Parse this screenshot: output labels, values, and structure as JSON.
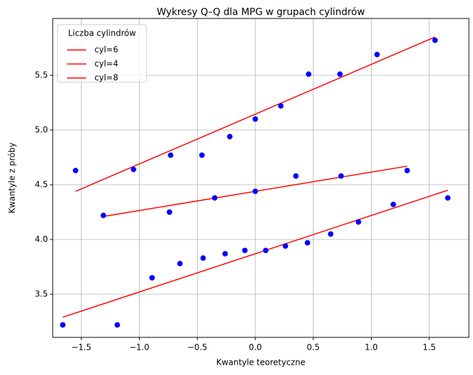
{
  "chart_data": {
    "type": "scatter",
    "title": "Wykresy Q–Q dla MPG w grupach cylindrów",
    "x_label": "Kwantyle teoretyczne",
    "y_label": "Kwantyle z próby",
    "legend_title": "Liczba cylindrów",
    "legend": "upper left",
    "grid": true,
    "marker_color": "#0000ff",
    "xlim": [
      -1.747,
      1.842
    ],
    "ylim": [
      3.106,
      6.019
    ],
    "xticks": [
      {
        "value": -1.5,
        "label": "−1.5"
      },
      {
        "value": -1.0,
        "label": "−1.0"
      },
      {
        "value": -0.5,
        "label": "−0.5"
      },
      {
        "value": 0,
        "label": "0.0"
      },
      0.5,
      {
        "value": 1.0,
        "label": "1.0"
      },
      1.5
    ],
    "yticks": [
      3.5,
      {
        "value": 4.0,
        "label": "4.0"
      },
      4.5,
      {
        "value": 5.0,
        "label": "5.0"
      },
      5.5
    ],
    "series": [
      {
        "name": "cyl=6",
        "color": "#ff0000",
        "x": [
          -1.31,
          -0.74,
          -0.35,
          0,
          0.35,
          0.74,
          1.31
        ],
        "y": [
          4.22,
          4.25,
          4.38,
          4.44,
          4.58,
          4.58,
          4.63
        ],
        "line_x": [
          -1.31,
          1.31
        ],
        "line_y": [
          4.21,
          4.67
        ]
      },
      {
        "name": "cyl=4",
        "color": "#ff0000",
        "x": [
          -1.55,
          -1.05,
          -0.73,
          -0.46,
          -0.22,
          0,
          0.22,
          0.46,
          0.73,
          1.05,
          1.55
        ],
        "y": [
          4.63,
          4.64,
          4.77,
          4.77,
          4.94,
          5.1,
          5.22,
          5.51,
          5.51,
          5.69,
          5.82
        ],
        "line_x": [
          -1.55,
          1.55
        ],
        "line_y": [
          4.44,
          5.85
        ]
      },
      {
        "name": "cyl=8",
        "color": "#ff0000",
        "x": [
          -1.66,
          -1.19,
          -0.89,
          -0.65,
          -0.45,
          -0.26,
          -0.09,
          0.09,
          0.26,
          0.45,
          0.65,
          0.89,
          1.19,
          1.66
        ],
        "y": [
          3.22,
          3.22,
          3.65,
          3.78,
          3.83,
          3.87,
          3.9,
          3.9,
          3.94,
          3.97,
          4.05,
          4.16,
          4.32,
          4.38
        ],
        "line_x": [
          -1.66,
          1.66
        ],
        "line_y": [
          3.29,
          4.45
        ]
      }
    ]
  }
}
